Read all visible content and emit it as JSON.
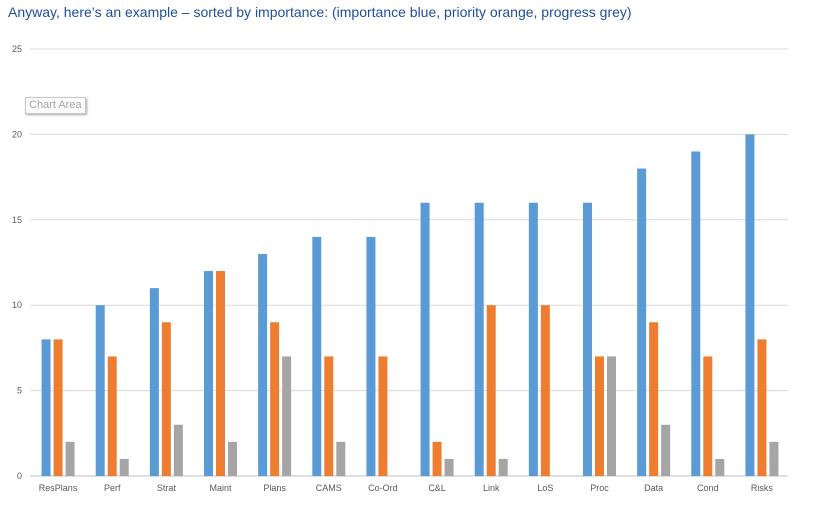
{
  "heading": "Anyway, here’s an example – sorted by importance: (importance blue, priority orange, progress grey)",
  "tooltip": "Chart Area",
  "colors": {
    "importance": "#5b9bd5",
    "priority": "#ed7d31",
    "progress": "#a5a5a5",
    "gridline": "#d9d9d9",
    "axis": "#bfbfbf"
  },
  "chart_data": {
    "type": "bar",
    "title": "",
    "xlabel": "",
    "ylabel": "",
    "categories": [
      "ResPlans",
      "Perf",
      "Strat",
      "Maint",
      "Plans",
      "CAMS",
      "Co-Ord",
      "C&L",
      "Link",
      "LoS",
      "Proc",
      "Data",
      "Cond",
      "Risks"
    ],
    "series": [
      {
        "values": [
          8,
          10,
          11,
          12,
          13,
          14,
          14,
          16,
          16,
          16,
          16,
          18,
          19,
          20
        ]
      },
      {
        "values": [
          8,
          7,
          9,
          12,
          9,
          7,
          7,
          2,
          10,
          10,
          7,
          9,
          7,
          8
        ]
      },
      {
        "values": [
          2,
          1,
          3,
          2,
          7,
          2,
          0,
          1,
          1,
          0,
          7,
          3,
          1,
          2
        ]
      }
    ],
    "ylim": [
      0,
      25
    ],
    "yticks": [
      "0",
      "5",
      "10",
      "15",
      "20",
      "25"
    ],
    "grid": true,
    "legend": "none"
  }
}
